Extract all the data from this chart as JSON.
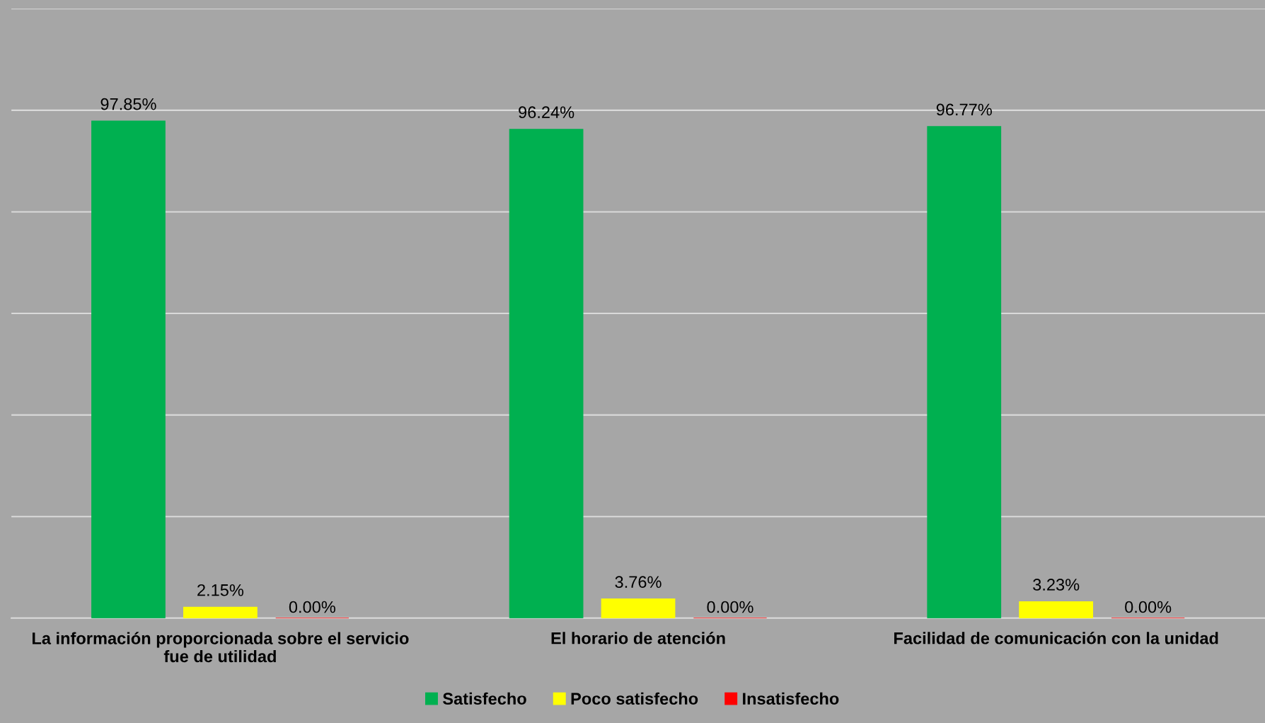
{
  "chart_data": {
    "type": "bar",
    "categories": [
      "La información proporcionada sobre el servicio fue de utilidad",
      "El horario de atención",
      "Facilidad de comunicación con la unidad"
    ],
    "series": [
      {
        "name": "Satisfecho",
        "color": "#00b050",
        "values": [
          97.85,
          96.24,
          96.77
        ],
        "value_labels": [
          "97.85%",
          "96.24%",
          "96.77%"
        ]
      },
      {
        "name": "Poco satisfecho",
        "color": "#ffff00",
        "values": [
          2.15,
          3.76,
          3.23
        ],
        "value_labels": [
          "2.15%",
          "3.76%",
          "3.23%"
        ]
      },
      {
        "name": "Insatisfecho",
        "color": "#ff0000",
        "values": [
          0,
          0,
          0
        ],
        "value_labels": [
          "0.00%",
          "0.00%",
          "0.00%"
        ]
      }
    ],
    "ylim": [
      0,
      120
    ],
    "yticks": [
      {
        "value": 0,
        "label": null
      },
      {
        "value": 20,
        "label": null
      },
      {
        "value": 40,
        "label": null
      },
      {
        "value": 60,
        "label": null
      },
      {
        "value": 80,
        "label": null
      },
      {
        "value": 100,
        "label": null
      },
      {
        "value": 120,
        "label": null
      }
    ],
    "grid": "y",
    "legend": "bottom",
    "tick_labels": "x"
  }
}
